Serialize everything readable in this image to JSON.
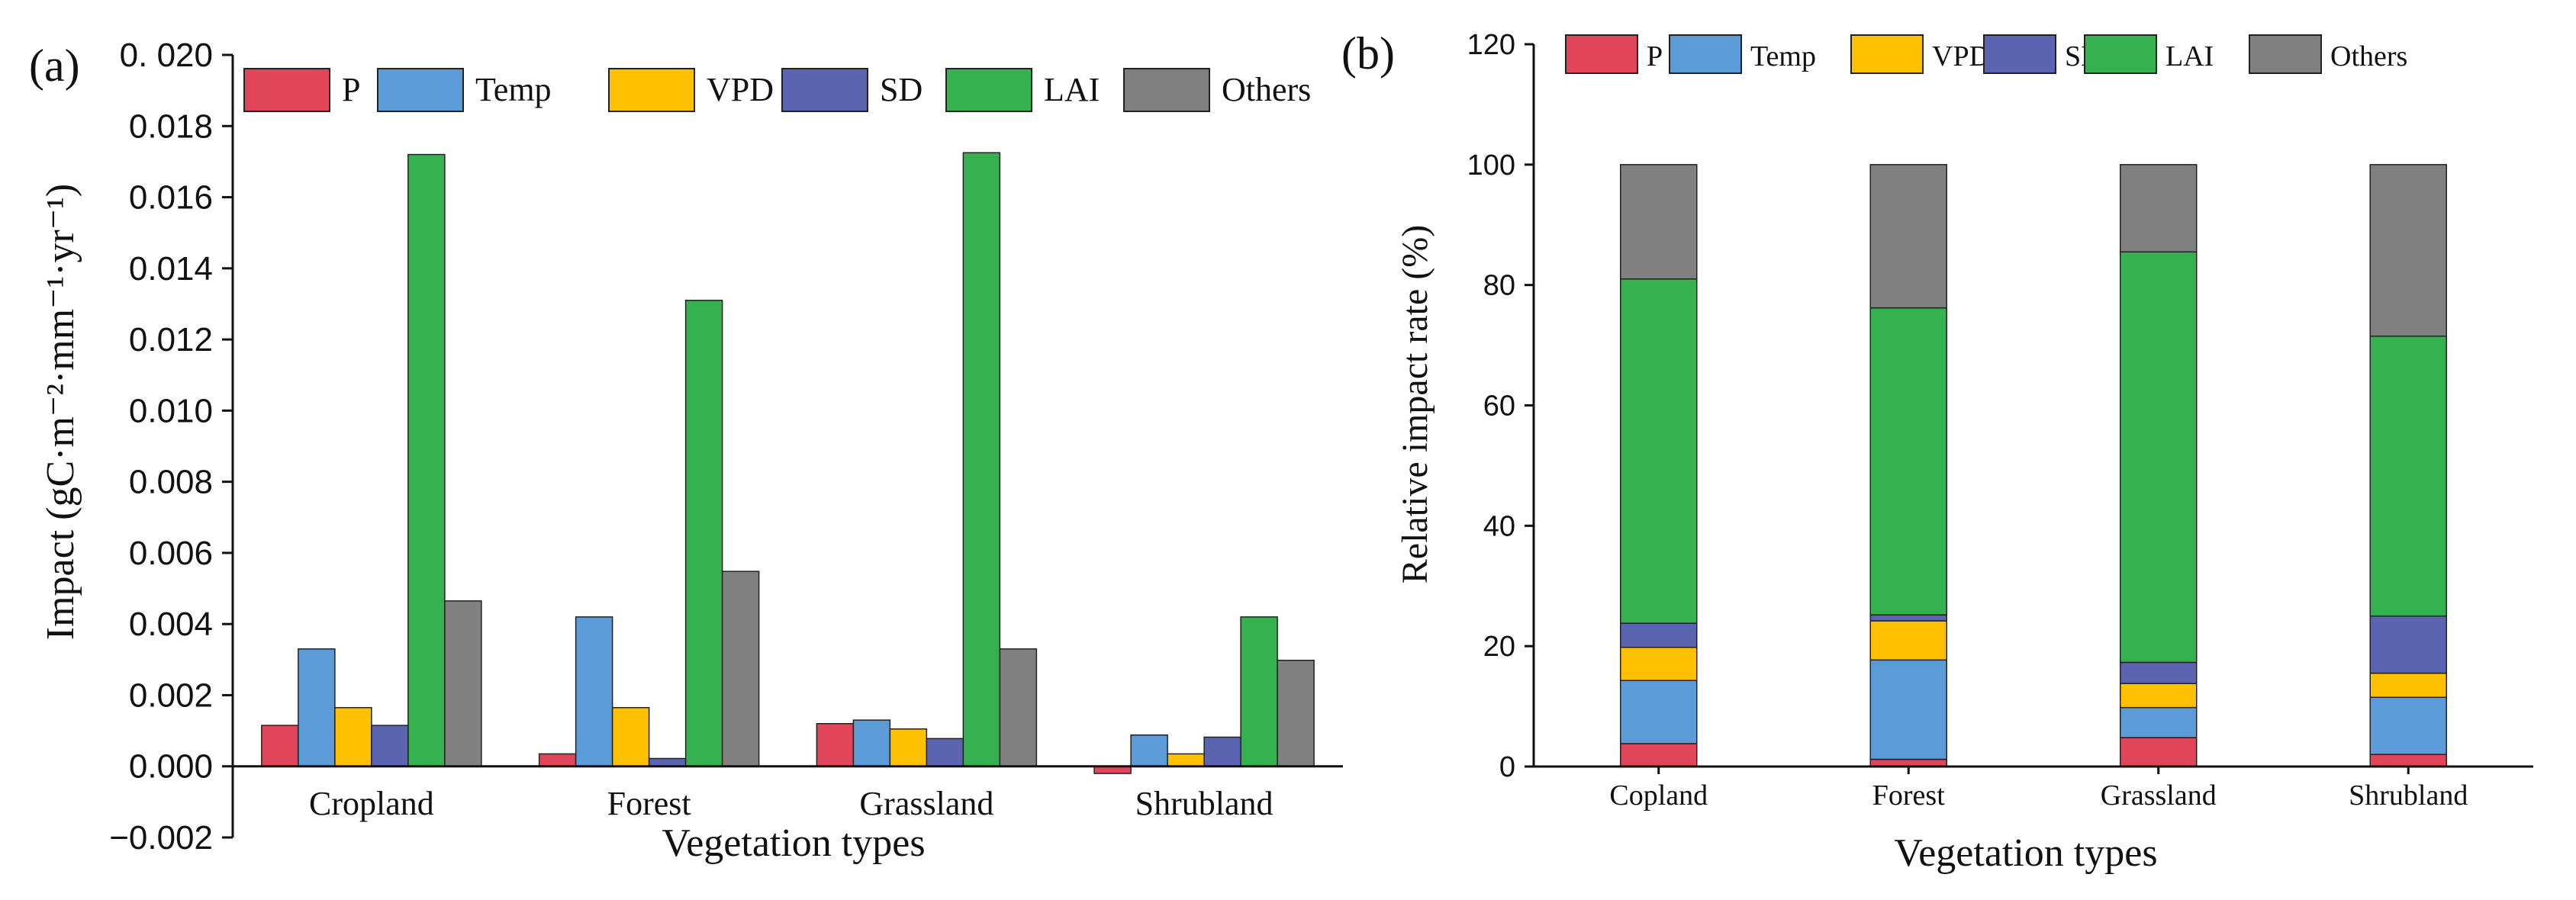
{
  "colors": {
    "P": "#e0455a",
    "Temp": "#5b9bd8",
    "VPD": "#ffc000",
    "SD": "#5b64b0",
    "LAI": "#35b14f",
    "Others": "#808080"
  },
  "chart_data": [
    {
      "panel": "(a)",
      "type": "bar",
      "title": "",
      "xlabel": "Vegetation types",
      "ylabel": "Impact (gC·m⁻²·mm⁻¹·yr⁻¹)",
      "ylim": [
        -0.002,
        0.02
      ],
      "yticks": [
        -0.002,
        0,
        0.002,
        0.004,
        0.006,
        0.008,
        0.01,
        0.012,
        0.014,
        0.016,
        0.018,
        0.02
      ],
      "ytick_labels": [
        "−0.002",
        "0.000",
        "0.002",
        "0.004",
        "0.006",
        "0.008",
        "0.010",
        "0.012",
        "0.014",
        "0.016",
        "0.018",
        "0. 020"
      ],
      "legend_position": "top",
      "categories": [
        "Cropland",
        "Forest",
        "Grassland",
        "Shrubland"
      ],
      "series": [
        {
          "name": "P",
          "values": [
            0.00115,
            0.00035,
            0.0012,
            -0.0002
          ]
        },
        {
          "name": "Temp",
          "values": [
            0.0033,
            0.0042,
            0.0013,
            0.00088
          ]
        },
        {
          "name": "VPD",
          "values": [
            0.00165,
            0.00165,
            0.00105,
            0.00035
          ]
        },
        {
          "name": "SD",
          "values": [
            0.00115,
            0.00022,
            0.00078,
            0.00082
          ]
        },
        {
          "name": "LAI",
          "values": [
            0.0172,
            0.0131,
            0.01725,
            0.0042
          ]
        },
        {
          "name": "Others",
          "values": [
            0.00465,
            0.00548,
            0.0033,
            0.00298
          ]
        }
      ]
    },
    {
      "panel": "(b)",
      "type": "bar",
      "stacked": true,
      "title": "",
      "xlabel": "Vegetation types",
      "ylabel": "Relative impact rate (%)",
      "ylim": [
        0,
        120
      ],
      "yticks": [
        0,
        20,
        40,
        60,
        80,
        100,
        120
      ],
      "ytick_labels": [
        "0",
        "20",
        "40",
        "60",
        "80",
        "100",
        "120"
      ],
      "legend_position": "top",
      "categories": [
        "Copland",
        "Forest",
        "Grassland",
        "Shrubland"
      ],
      "series": [
        {
          "name": "P",
          "values": [
            3.8,
            1.2,
            4.8,
            2.0
          ]
        },
        {
          "name": "Temp",
          "values": [
            10.5,
            16.5,
            5.0,
            9.5
          ]
        },
        {
          "name": "VPD",
          "values": [
            5.5,
            6.5,
            4.0,
            4.0
          ]
        },
        {
          "name": "SD",
          "values": [
            4.0,
            1.0,
            3.5,
            9.5
          ]
        },
        {
          "name": "LAI",
          "values": [
            57.2,
            51.0,
            68.2,
            46.5
          ]
        },
        {
          "name": "Others",
          "values": [
            19.0,
            23.8,
            14.5,
            28.5
          ]
        }
      ]
    }
  ]
}
